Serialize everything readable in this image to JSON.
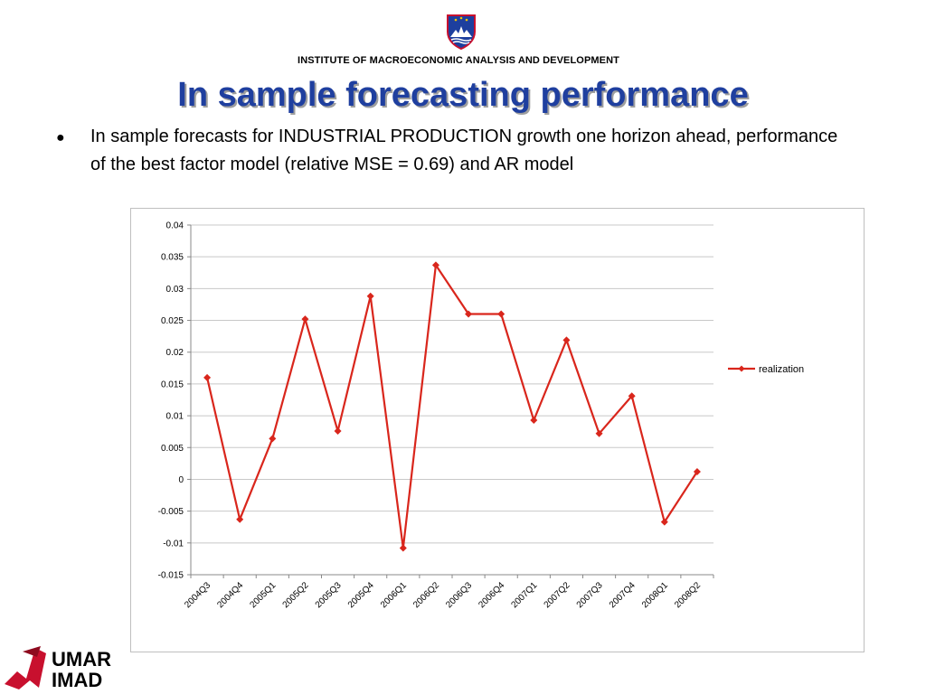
{
  "header": {
    "institute": "INSTITUTE OF MACROECONOMIC ANALYSIS AND DEVELOPMENT",
    "title": "In sample forecasting performance"
  },
  "body": {
    "bullet_symbol": "●",
    "bullet_text": "In sample forecasts for INDUSTRIAL PRODUCTION growth one horizon ahead, performance of the best factor model (relative MSE = 0.69) and AR model"
  },
  "logo": {
    "line1": "UMAR",
    "line2": "IMAD",
    "color": "#c8102e"
  },
  "chart_data": {
    "type": "line",
    "categories": [
      "2004Q3",
      "2004Q4",
      "2005Q1",
      "2005Q2",
      "2005Q3",
      "2005Q4",
      "2006Q1",
      "2006Q2",
      "2006Q3",
      "2006Q4",
      "2007Q1",
      "2007Q2",
      "2007Q3",
      "2007Q4",
      "2008Q1",
      "2008Q2"
    ],
    "series": [
      {
        "name": "realization",
        "color": "#d9261c",
        "marker": "diamond",
        "values": [
          0.016,
          -0.0063,
          0.0064,
          0.0252,
          0.0076,
          0.0288,
          -0.0108,
          0.0337,
          0.026,
          0.026,
          0.0093,
          0.0219,
          0.0072,
          0.0131,
          -0.0067,
          0.0012
        ]
      }
    ],
    "ylim": [
      -0.015,
      0.04
    ],
    "yticks": [
      "0.04",
      "0.035",
      "0.03",
      "0.025",
      "0.02",
      "0.015",
      "0.01",
      "0.005",
      "0",
      "-0.005",
      "-0.01",
      "-0.015"
    ],
    "grid": true,
    "legend": "right"
  }
}
